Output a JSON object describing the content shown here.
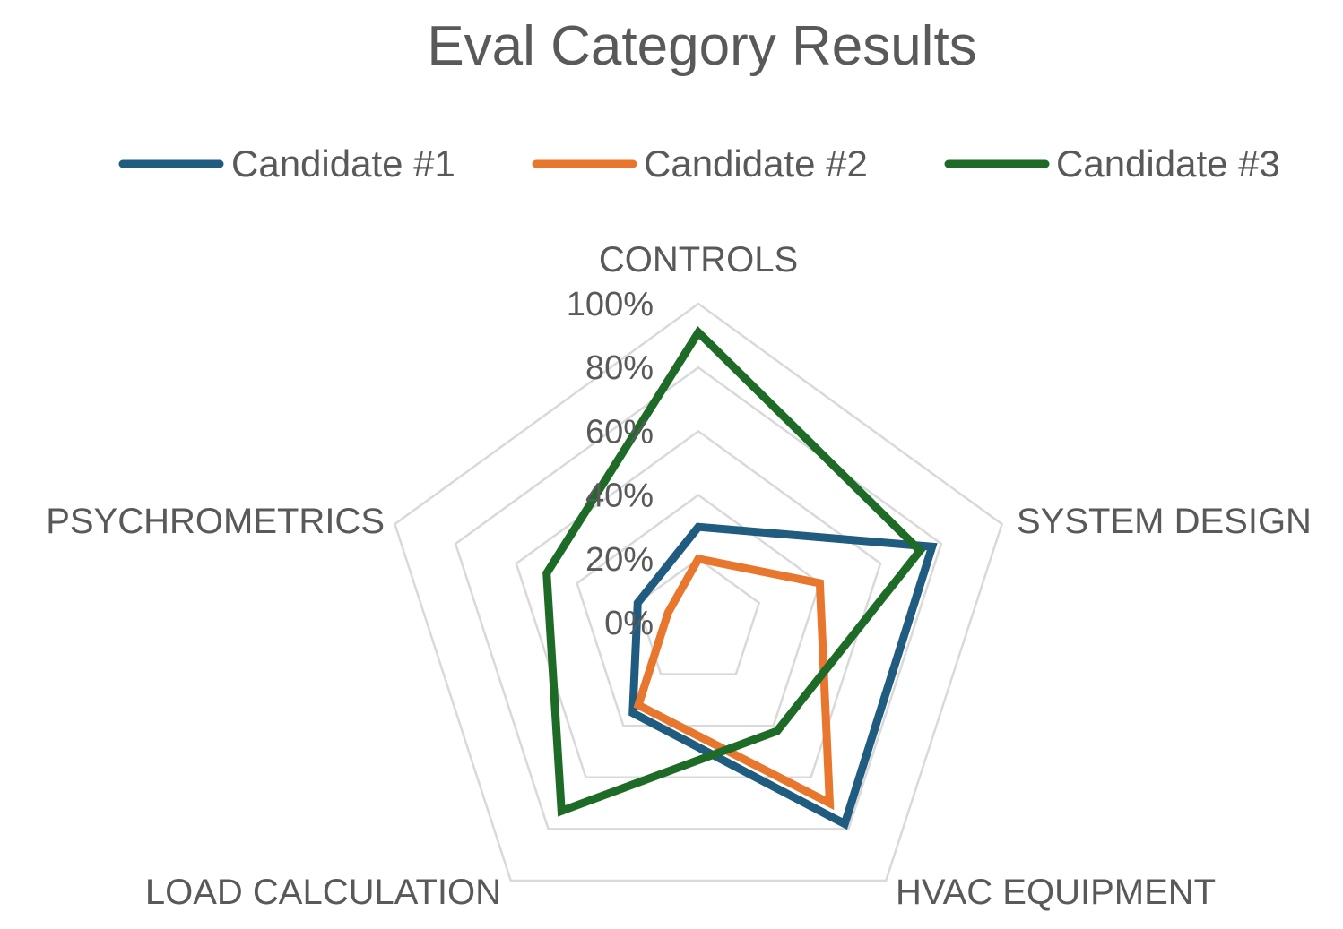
{
  "chart_data": {
    "type": "radar",
    "title": "Eval Category Results",
    "categories": [
      "CONTROLS",
      "SYSTEM DESIGN",
      "HVAC EQUIPMENT",
      "LOAD CALCULATION",
      "PSYCHROMETRICS"
    ],
    "tick_labels": [
      "0%",
      "20%",
      "40%",
      "60%",
      "80%",
      "100%"
    ],
    "rlim": [
      0,
      100
    ],
    "grid": true,
    "legend_position": "top",
    "series": [
      {
        "name": "Candidate #1",
        "color": "#1f5c7f",
        "values": [
          30,
          77,
          78,
          35,
          20
        ]
      },
      {
        "name": "Candidate #2",
        "color": "#e8762d",
        "values": [
          20,
          40,
          70,
          32,
          10
        ]
      },
      {
        "name": "Candidate #3",
        "color": "#1d6b26",
        "values": [
          91,
          73,
          42,
          73,
          50
        ]
      }
    ]
  }
}
